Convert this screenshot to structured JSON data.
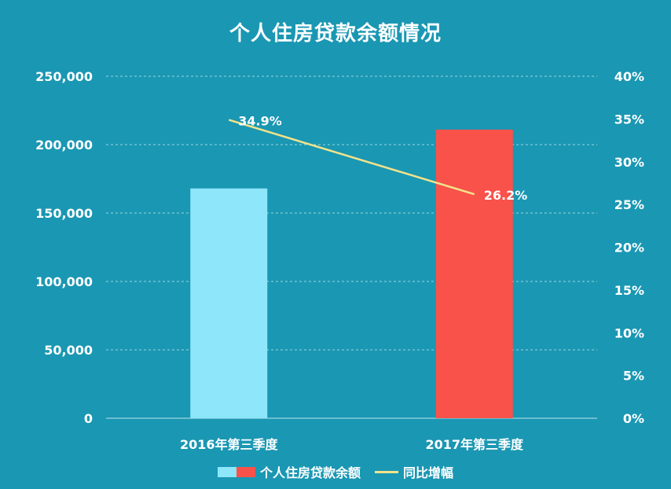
{
  "chart_data": {
    "type": "bar+line",
    "title": "个人住房贷款余额情况",
    "categories": [
      "2016年第三季度",
      "2017年第三季度"
    ],
    "bar_series": {
      "name": "个人住房贷款余额",
      "values": [
        168000,
        211000
      ],
      "colors": [
        "#8ee6fb",
        "#f8524a"
      ]
    },
    "line_series": {
      "name": "同比增幅",
      "values": [
        34.9,
        26.2
      ],
      "labels": [
        "34.9%",
        "26.2%"
      ],
      "color": "#f2e38a"
    },
    "y_left": {
      "min": 0,
      "max": 250000,
      "ticks": [
        "0",
        "50,000",
        "100,000",
        "150,000",
        "200,000",
        "250,000"
      ]
    },
    "y_right": {
      "min": 0,
      "max": 40,
      "ticks": [
        "0%",
        "5%",
        "10%",
        "15%",
        "20%",
        "25%",
        "30%",
        "35%",
        "40%"
      ]
    },
    "grid": true,
    "legend_position": "bottom"
  },
  "colors": {
    "background": "#1a97b3",
    "grid": "#bfe6ee"
  }
}
